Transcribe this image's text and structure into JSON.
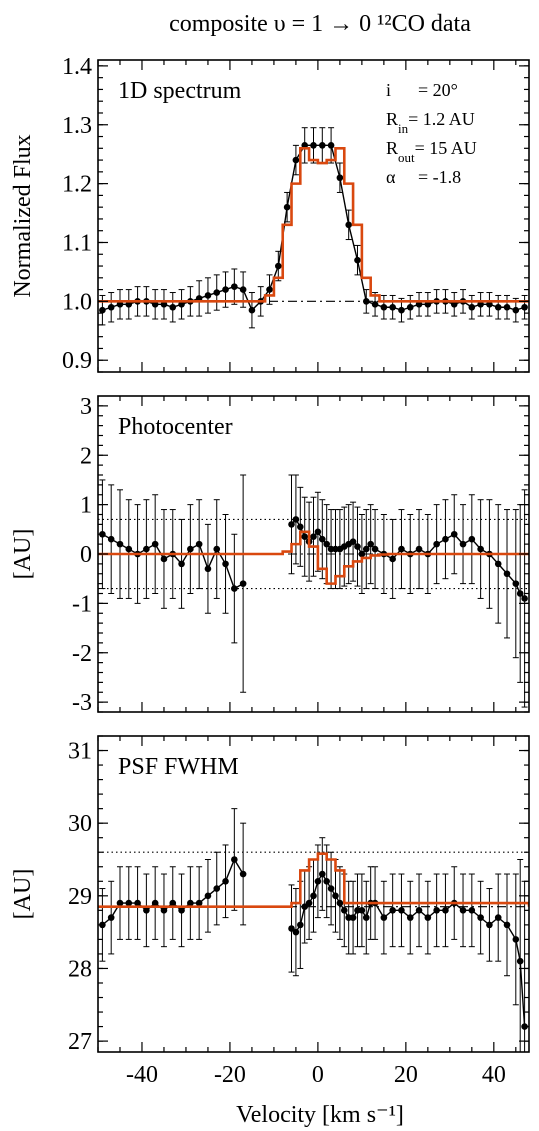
{
  "title": "composite υ = 1 → 0 ¹²CO data",
  "xlabel": "Velocity [km s⁻¹]",
  "colors": {
    "model": "#d9480f",
    "data": "#000000"
  },
  "chart_data": [
    {
      "type": "line",
      "panel_label": "1D spectrum",
      "ylabel": "Normalized Flux",
      "xlim": [
        -50,
        48
      ],
      "ylim": [
        0.88,
        1.41
      ],
      "yticks": [
        0.9,
        1.0,
        1.1,
        1.2,
        1.3,
        1.4
      ],
      "ytick_labels": [
        "0.9",
        "1.0",
        "1.1",
        "1.2",
        "1.3",
        "1.4"
      ],
      "xticks": [
        -40,
        -20,
        0,
        20,
        40
      ],
      "params": [
        {
          "name": "i",
          "value": "= 20°"
        },
        {
          "name": "R_in",
          "value": "= 1.2 AU"
        },
        {
          "name": "R_out",
          "value": "= 15 AU"
        },
        {
          "name": "α",
          "value": "= -1.8"
        }
      ],
      "ref_lines": [
        {
          "y": 1.0,
          "style": "dashdot"
        }
      ],
      "series": [
        {
          "style": "points_errorbars",
          "x": [
            -49,
            -47,
            -45,
            -43,
            -41,
            -39,
            -37,
            -35,
            -33,
            -31,
            -29,
            -27,
            -25,
            -23,
            -21,
            -19,
            -17,
            -15,
            -13,
            -11,
            -9,
            -7,
            -5,
            -3,
            -1,
            1,
            3,
            5,
            7,
            9,
            11,
            13,
            15,
            17,
            19,
            21,
            23,
            25,
            27,
            29,
            31,
            33,
            35,
            37,
            39,
            41,
            43,
            45,
            47
          ],
          "y": [
            0.985,
            0.99,
            0.995,
            0.995,
            1.0,
            1.0,
            0.995,
            0.995,
            0.99,
            0.995,
            1.0,
            1.005,
            1.01,
            1.015,
            1.02,
            1.025,
            1.02,
            0.985,
            1.0,
            1.02,
            1.06,
            1.16,
            1.24,
            1.265,
            1.265,
            1.265,
            1.265,
            1.21,
            1.13,
            1.07,
            1.0,
            0.995,
            0.99,
            0.99,
            0.985,
            0.99,
            0.995,
            0.995,
            1.0,
            1.0,
            0.995,
            1.0,
            0.99,
            0.995,
            0.995,
            0.99,
            0.99,
            0.985,
            0.99
          ],
          "err": [
            0.025,
            0.025,
            0.025,
            0.025,
            0.025,
            0.025,
            0.025,
            0.025,
            0.025,
            0.025,
            0.025,
            0.03,
            0.03,
            0.03,
            0.03,
            0.03,
            0.03,
            0.03,
            0.025,
            0.025,
            0.025,
            0.025,
            0.025,
            0.03,
            0.03,
            0.03,
            0.03,
            0.025,
            0.025,
            0.025,
            0.02,
            0.02,
            0.02,
            0.02,
            0.02,
            0.02,
            0.02,
            0.02,
            0.02,
            0.02,
            0.02,
            0.02,
            0.02,
            0.02,
            0.02,
            0.02,
            0.02,
            0.02,
            0.02
          ]
        },
        {
          "style": "step_model",
          "x": [
            -50,
            -14,
            -12,
            -10,
            -8,
            -6,
            -4,
            -2,
            0,
            2,
            4,
            6,
            8,
            10,
            12,
            14,
            48
          ],
          "y": [
            1.0,
            1.0,
            1.01,
            1.04,
            1.13,
            1.2,
            1.26,
            1.24,
            1.235,
            1.24,
            1.26,
            1.2,
            1.13,
            1.04,
            1.01,
            1.0,
            1.0
          ]
        }
      ]
    },
    {
      "type": "line",
      "panel_label": "Photocenter",
      "ylabel": "[AU]",
      "xlim": [
        -50,
        48
      ],
      "ylim": [
        -3.2,
        3.2
      ],
      "yticks": [
        -3,
        -2,
        -1,
        0,
        1,
        2,
        3
      ],
      "ytick_labels": [
        "-3",
        "-2",
        "-1",
        "0",
        "1",
        "2",
        "3"
      ],
      "xticks": [
        -40,
        -20,
        0,
        20,
        40
      ],
      "ref_lines": [
        {
          "y": 0,
          "style": "dashdot"
        },
        {
          "y": 0.7,
          "style": "dotted"
        },
        {
          "y": -0.7,
          "style": "dotted"
        }
      ],
      "series": [
        {
          "style": "points_errorbars",
          "x": [
            -49,
            -47,
            -45,
            -43,
            -41,
            -39,
            -37,
            -35,
            -33,
            -31,
            -29,
            -27,
            -25,
            -23,
            -21,
            -19,
            -17,
            -6,
            -5,
            -4,
            -3,
            -2,
            -1,
            0,
            1,
            2,
            3,
            4,
            5,
            6,
            7,
            8,
            9,
            10,
            11,
            12,
            13,
            15,
            17,
            19,
            21,
            23,
            25,
            27,
            29,
            31,
            33,
            35,
            37,
            39,
            41,
            43,
            45,
            46,
            47
          ],
          "y": [
            0.4,
            0.3,
            0.2,
            0.1,
            0.0,
            0.1,
            0.2,
            -0.1,
            0.0,
            -0.2,
            0.1,
            0.2,
            -0.3,
            0.1,
            -0.2,
            -0.7,
            -0.6,
            0.6,
            0.7,
            0.55,
            0.35,
            0.25,
            0.35,
            0.45,
            0.3,
            0.2,
            0.1,
            0.1,
            0.1,
            0.15,
            0.2,
            0.25,
            0.15,
            0.0,
            0.1,
            0.2,
            0.1,
            0.0,
            -0.1,
            0.1,
            0.0,
            0.1,
            0.0,
            0.2,
            0.3,
            0.4,
            0.2,
            0.3,
            0.1,
            0.0,
            -0.2,
            -0.4,
            -0.6,
            -0.8,
            -0.9
          ],
          "err": [
            1.1,
            1.1,
            1.1,
            1.0,
            1.0,
            1.0,
            1.0,
            1.0,
            0.9,
            0.9,
            0.9,
            0.9,
            0.9,
            1.0,
            1.0,
            1.1,
            2.2,
            1.0,
            0.9,
            0.8,
            0.8,
            0.8,
            0.8,
            0.8,
            0.8,
            0.8,
            0.8,
            0.8,
            0.8,
            0.8,
            0.8,
            0.8,
            0.8,
            0.8,
            0.8,
            0.8,
            0.8,
            0.8,
            0.8,
            0.8,
            0.8,
            0.8,
            0.8,
            0.8,
            0.8,
            0.8,
            0.8,
            0.9,
            1.0,
            1.1,
            1.2,
            1.3,
            1.5,
            1.8,
            2.2
          ]
        },
        {
          "style": "step_model",
          "x": [
            -50,
            -10,
            -8,
            -6,
            -4,
            -2,
            0,
            2,
            4,
            6,
            8,
            10,
            12,
            14,
            16,
            48
          ],
          "y": [
            0,
            0,
            0.05,
            0.2,
            0.45,
            0.15,
            -0.3,
            -0.6,
            -0.45,
            -0.25,
            -0.15,
            -0.08,
            -0.03,
            -0.01,
            0,
            0
          ]
        }
      ]
    },
    {
      "type": "line",
      "panel_label": "PSF FWHM",
      "ylabel": "[AU]",
      "xlim": [
        -50,
        48
      ],
      "ylim": [
        26.85,
        31.2
      ],
      "yticks": [
        27,
        28,
        29,
        30,
        31
      ],
      "ytick_labels": [
        "27",
        "28",
        "29",
        "30",
        "31"
      ],
      "xticks": [
        -40,
        -20,
        0,
        20,
        40
      ],
      "xtick_labels": [
        "-40",
        "-20",
        "0",
        "20",
        "40"
      ],
      "ref_lines": [
        {
          "y": 28.85,
          "style": "dashdot"
        },
        {
          "y": 29.6,
          "style": "dotted"
        }
      ],
      "series": [
        {
          "style": "points_errorbars",
          "x": [
            -49,
            -47,
            -45,
            -43,
            -41,
            -39,
            -37,
            -35,
            -33,
            -31,
            -29,
            -27,
            -25,
            -23,
            -21,
            -19,
            -17,
            -6,
            -5,
            -4,
            -3,
            -2,
            -1,
            0,
            1,
            2,
            3,
            4,
            5,
            6,
            7,
            8,
            9,
            10,
            11,
            12,
            13,
            15,
            17,
            19,
            21,
            23,
            25,
            27,
            29,
            31,
            33,
            35,
            37,
            39,
            41,
            43,
            45,
            46,
            47
          ],
          "y": [
            28.6,
            28.7,
            28.9,
            28.9,
            28.9,
            28.8,
            28.9,
            28.8,
            28.9,
            28.8,
            28.9,
            28.9,
            29.0,
            29.1,
            29.2,
            29.5,
            29.3,
            28.55,
            28.5,
            28.6,
            28.85,
            28.9,
            29.0,
            29.2,
            29.3,
            29.2,
            29.1,
            29.0,
            28.9,
            28.8,
            28.7,
            28.7,
            28.8,
            28.8,
            28.7,
            28.9,
            28.9,
            28.7,
            28.8,
            28.8,
            28.7,
            28.8,
            28.7,
            28.8,
            28.8,
            28.9,
            28.8,
            28.8,
            28.7,
            28.6,
            28.7,
            28.6,
            28.4,
            28.1,
            27.2
          ],
          "err": [
            0.5,
            0.5,
            0.5,
            0.5,
            0.5,
            0.5,
            0.5,
            0.5,
            0.5,
            0.5,
            0.5,
            0.5,
            0.5,
            0.5,
            0.5,
            0.7,
            0.7,
            0.6,
            0.6,
            0.6,
            0.5,
            0.5,
            0.5,
            0.5,
            0.5,
            0.5,
            0.5,
            0.5,
            0.5,
            0.5,
            0.5,
            0.5,
            0.5,
            0.5,
            0.5,
            0.5,
            0.5,
            0.5,
            0.5,
            0.5,
            0.5,
            0.5,
            0.5,
            0.5,
            0.5,
            0.5,
            0.5,
            0.5,
            0.5,
            0.5,
            0.6,
            0.7,
            0.9,
            1.4,
            2.0
          ]
        },
        {
          "style": "step_model",
          "x": [
            -50,
            -6,
            -4,
            -2,
            0,
            2,
            4,
            6,
            48
          ],
          "y": [
            28.85,
            28.9,
            29.35,
            29.5,
            29.58,
            29.5,
            29.35,
            28.9,
            28.85
          ]
        }
      ]
    }
  ]
}
